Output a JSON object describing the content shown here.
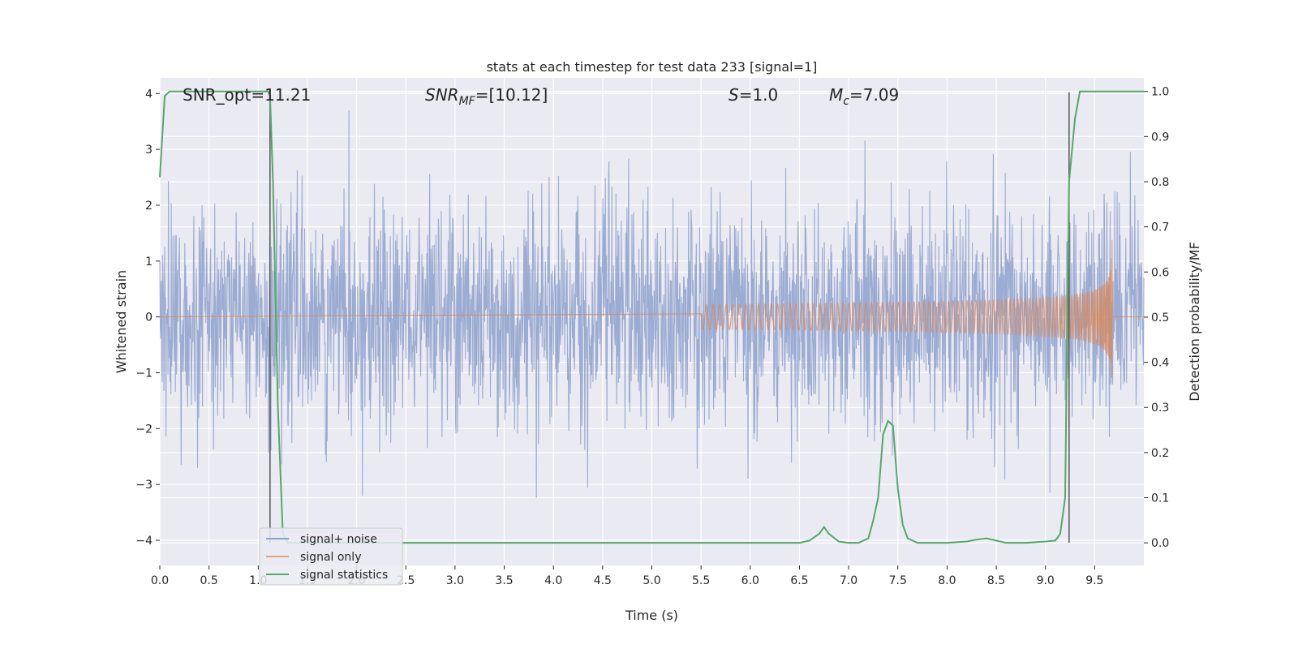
{
  "chart_data": {
    "type": "line",
    "title": "stats at each timestep for test data 233 [signal=1]",
    "xlabel": "Time (s)",
    "ylabel": "Whitened strain",
    "y2label": "Detection probability/MF",
    "xlim": [
      0.0,
      10.0
    ],
    "ylim": [
      -4.45,
      4.28
    ],
    "y2lim": [
      -0.05,
      1.03
    ],
    "xticks": [
      "0.0",
      "0.5",
      "1.0",
      "1.5",
      "2.0",
      "2.5",
      "3.0",
      "3.5",
      "4.0",
      "4.5",
      "5.0",
      "5.5",
      "6.0",
      "6.5",
      "7.0",
      "7.5",
      "8.0",
      "8.5",
      "9.0",
      "9.5"
    ],
    "yticks": [
      "−4",
      "−3",
      "−2",
      "−1",
      "0",
      "1",
      "2",
      "3",
      "4"
    ],
    "y2ticks": [
      "0.0",
      "0.1",
      "0.2",
      "0.3",
      "0.4",
      "0.5",
      "0.6",
      "0.7",
      "0.8",
      "0.9",
      "1.0"
    ],
    "grid": true,
    "legend": {
      "placement": "lower-left",
      "entries": [
        "signal+ noise",
        "signal only",
        "signal statistics"
      ]
    },
    "annotations": {
      "snr_opt": "SNR_opt=11.21",
      "snr_mf_prefix": "SNR",
      "snr_mf_sub": "MF",
      "snr_mf_suffix": "=[10.12]",
      "s_prefix": "S",
      "s_suffix": "=1.0",
      "mc_prefix": "M",
      "mc_sub": "c",
      "mc_suffix": "=7.09"
    },
    "vertical_markers_x": [
      1.12,
      9.24
    ],
    "series": [
      {
        "name": "signal+ noise",
        "axis": "left",
        "color": "#8da0cb",
        "description_samples": "noise band ~±2 with spikes to ±3.9",
        "seed": 233,
        "x_range": [
          0.0,
          10.0
        ],
        "sigma": 1.0
      },
      {
        "name": "signal only",
        "axis": "left",
        "color": "#dd8452",
        "chirp_start": 5.5,
        "chirp_end": 9.68,
        "amp_at_9": 0.35,
        "peak_amp": 1.4
      },
      {
        "name": "signal statistics",
        "axis": "right",
        "color": "#55a868",
        "x": [
          0.0,
          0.05,
          0.1,
          0.15,
          0.2,
          0.3,
          0.5,
          0.8,
          1.0,
          1.05,
          1.1,
          1.12,
          1.15,
          1.2,
          1.25,
          1.3,
          1.35,
          1.45,
          1.6,
          2.0,
          3.0,
          4.0,
          5.0,
          6.0,
          6.3,
          6.5,
          6.6,
          6.7,
          6.75,
          6.8,
          6.9,
          7.0,
          7.1,
          7.2,
          7.25,
          7.3,
          7.35,
          7.4,
          7.45,
          7.5,
          7.55,
          7.6,
          7.7,
          7.8,
          8.0,
          8.2,
          8.3,
          8.4,
          8.5,
          8.6,
          8.8,
          9.0,
          9.1,
          9.15,
          9.2,
          9.24,
          9.3,
          9.35,
          9.4,
          9.5,
          9.7,
          10.0
        ],
        "y": [
          0.81,
          0.99,
          1.0,
          1.0,
          1.0,
          1.0,
          1.0,
          1.0,
          1.0,
          1.0,
          1.0,
          0.99,
          0.8,
          0.3,
          0.02,
          0.0,
          0.0,
          0.0,
          0.0,
          0.0,
          0.0,
          0.0,
          0.0,
          0.0,
          0.0,
          0.0,
          0.005,
          0.02,
          0.035,
          0.02,
          0.003,
          0.0,
          0.0,
          0.01,
          0.05,
          0.1,
          0.24,
          0.27,
          0.26,
          0.12,
          0.04,
          0.01,
          0.0,
          0.0,
          0.0,
          0.003,
          0.007,
          0.01,
          0.005,
          0.0,
          0.0,
          0.003,
          0.005,
          0.02,
          0.1,
          0.8,
          0.94,
          1.0,
          1.0,
          1.0,
          1.0,
          1.0
        ]
      }
    ]
  }
}
